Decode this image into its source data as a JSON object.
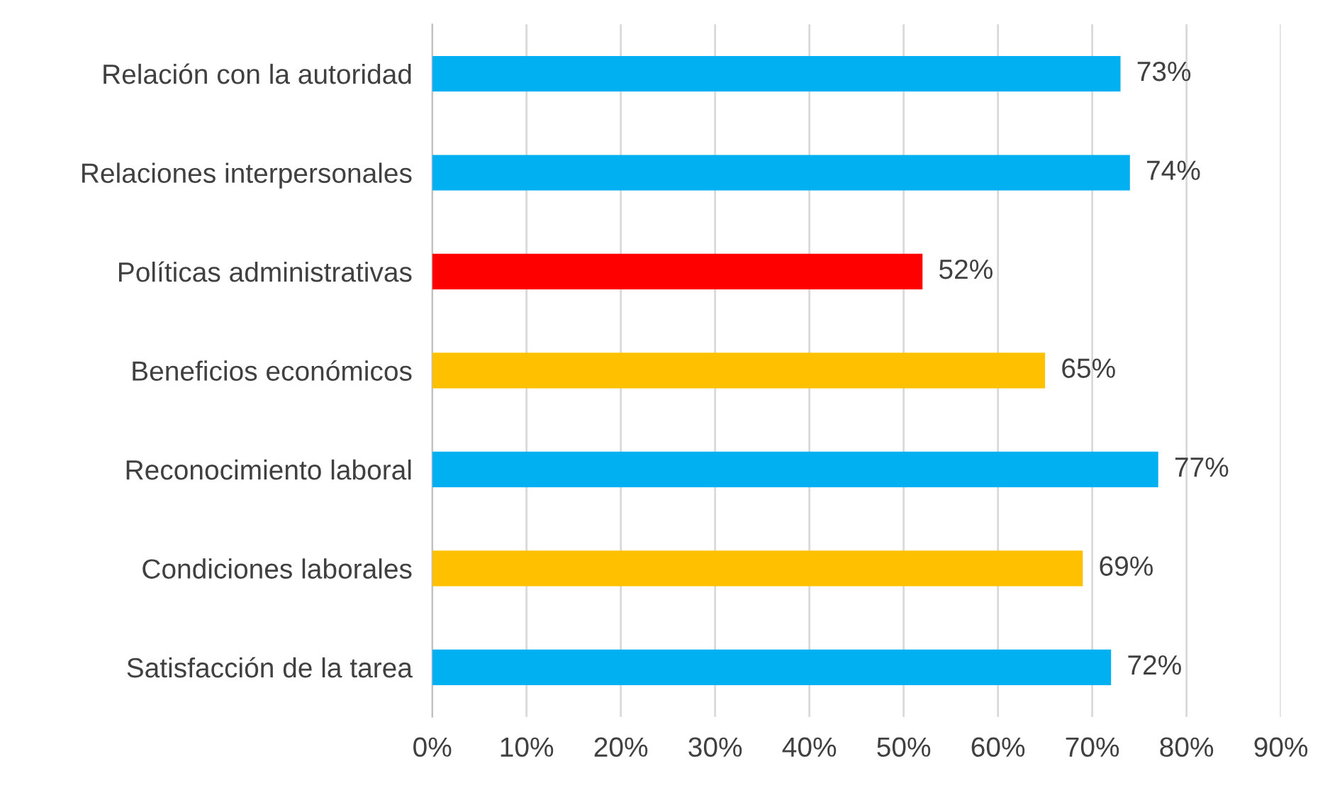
{
  "chart_data": {
    "type": "bar",
    "orientation": "horizontal",
    "categories": [
      "Relación con la autoridad",
      "Relaciones interpersonales",
      "Políticas administrativas",
      "Beneficios económicos",
      "Reconocimiento laboral",
      "Condiciones laborales",
      "Satisfacción de la tarea"
    ],
    "values": [
      73,
      74,
      52,
      65,
      77,
      69,
      72
    ],
    "colors": [
      "#00b0f0",
      "#00b0f0",
      "#ff0000",
      "#ffc000",
      "#00b0f0",
      "#ffc000",
      "#00b0f0"
    ],
    "value_labels": [
      "73%",
      "74%",
      "52%",
      "65%",
      "77%",
      "69%",
      "72%"
    ],
    "xlim": [
      0,
      90
    ],
    "xticks": [
      {
        "value": 0,
        "label": "0%"
      },
      {
        "value": 10,
        "label": "10%"
      },
      {
        "value": 20,
        "label": "20%"
      },
      {
        "value": 30,
        "label": "30%"
      },
      {
        "value": 40,
        "label": "40%"
      },
      {
        "value": 50,
        "label": "50%"
      },
      {
        "value": 60,
        "label": "60%"
      },
      {
        "value": 70,
        "label": "70%"
      },
      {
        "value": 80,
        "label": "80%"
      },
      {
        "value": 90,
        "label": "90%"
      }
    ],
    "grid": "x"
  }
}
